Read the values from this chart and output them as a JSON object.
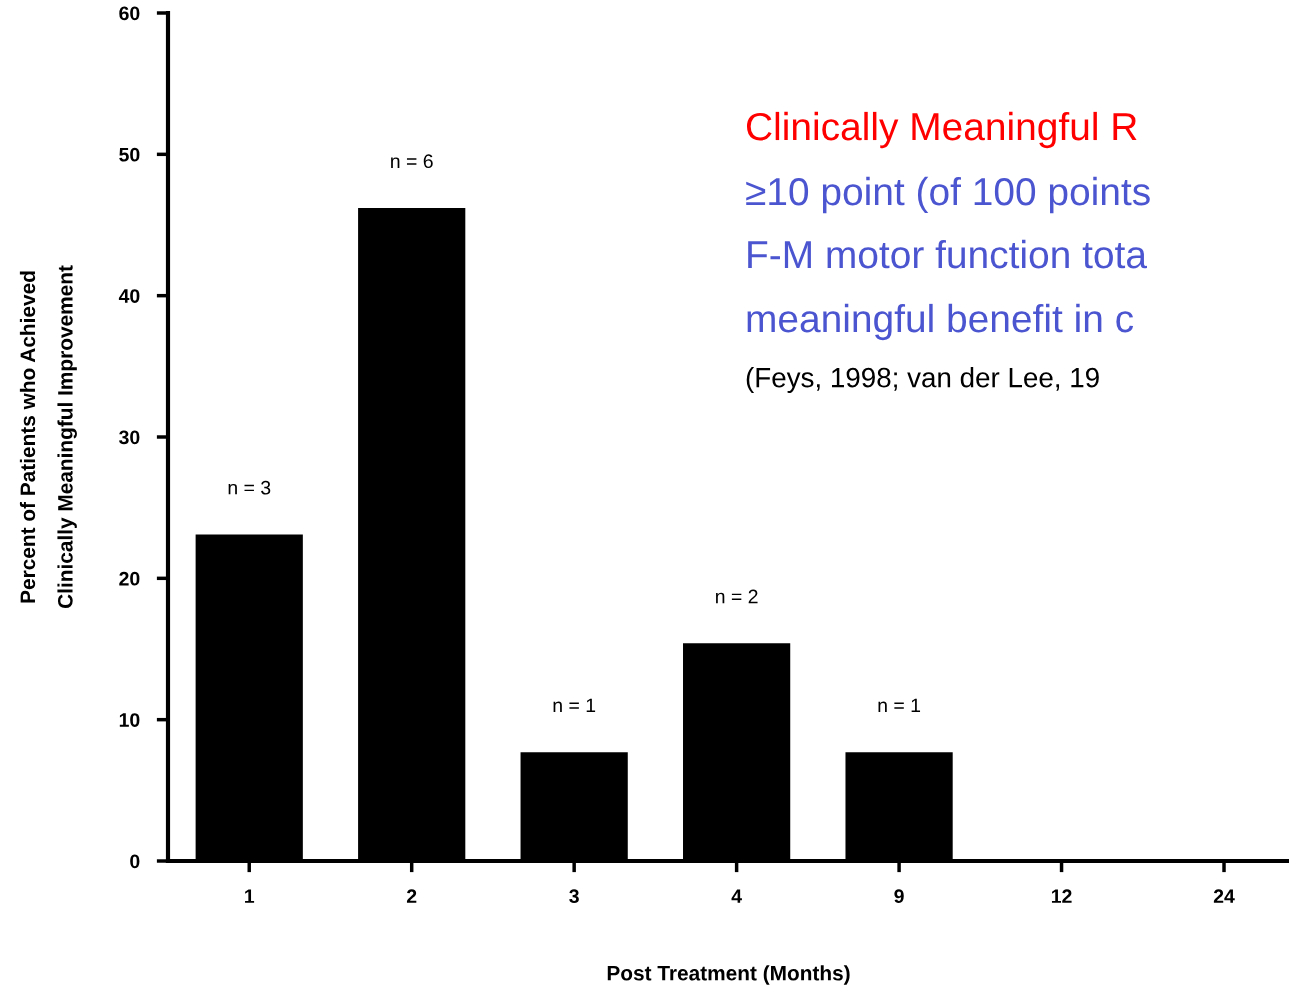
{
  "chart_data": {
    "type": "bar",
    "categories": [
      "1",
      "2",
      "3",
      "4",
      "9",
      "12",
      "24"
    ],
    "values": [
      23.1,
      46.2,
      7.7,
      15.4,
      7.7,
      0,
      0
    ],
    "color": "#000000",
    "xlabel": "Post Treatment (Months)",
    "ylabel": "Percent of Patients who Achieved\nClinically Meaningful Improvement",
    "ylim": [
      0,
      60
    ],
    "yticks": [
      0,
      10,
      20,
      30,
      40,
      50,
      60
    ],
    "grid": false,
    "annotations": [
      "Clinically Meaningful R",
      "≥10 point (of 100 points",
      "F-M motor function tota",
      "meaningful benefit in c",
      "(Feys, 1998; van der Lee, 19",
      {
        "text": "n = 3",
        "x": "1",
        "y": 23.1
      },
      {
        "text": "n = 6",
        "x": "2",
        "y": 46.2
      },
      {
        "text": "n = 1",
        "x": "3",
        "y": 7.7
      },
      {
        "text": "n = 2",
        "x": "4",
        "y": 15.4
      },
      {
        "text": "n = 1",
        "x": "9",
        "y": 7.7
      }
    ]
  }
}
